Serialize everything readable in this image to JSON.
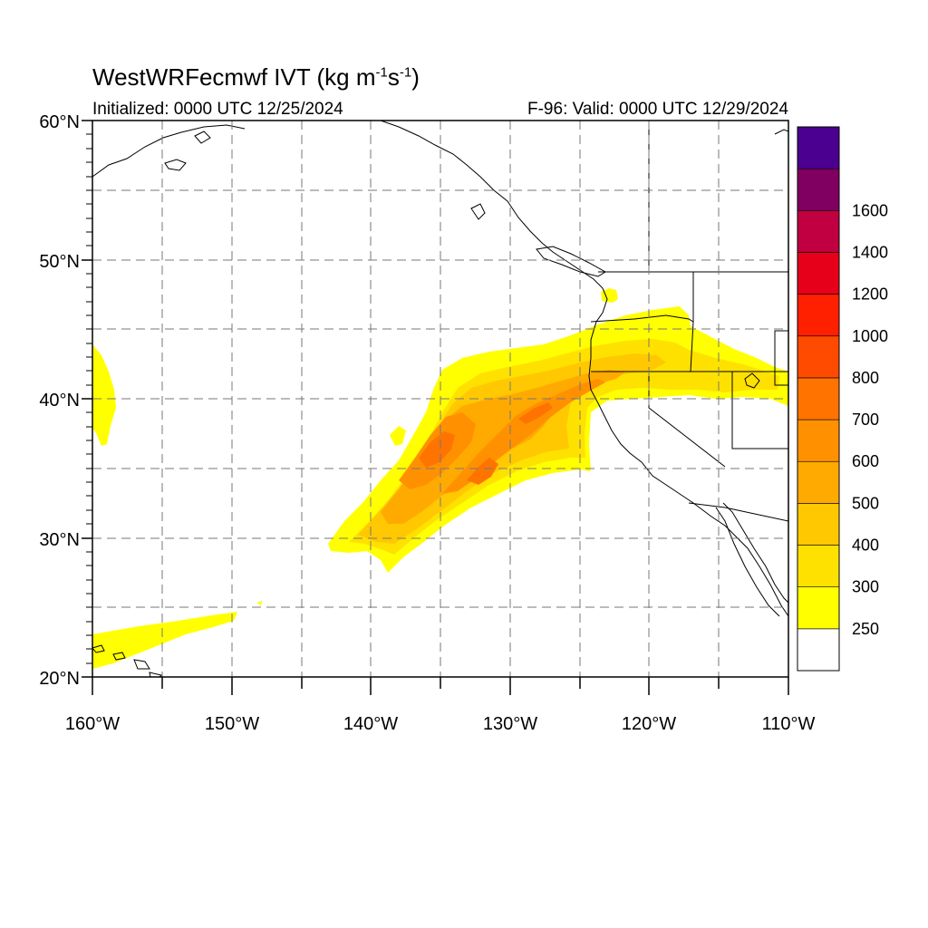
{
  "title": {
    "prefix": "WestWRFecmwf IVT (kg m",
    "sup1": "-1",
    "mid": "s",
    "sup2": "-1",
    "suffix": ")"
  },
  "subtitle_left": "Initialized: 0000 UTC 12/25/2024",
  "subtitle_right": "F-96: Valid: 0000 UTC 12/29/2024",
  "chart_data": {
    "type": "heatmap",
    "variable": "IVT",
    "units": "kg m-1 s-1",
    "lon_range": [
      -160,
      -110
    ],
    "lat_range": [
      20,
      60
    ],
    "grid": true,
    "legend_placement": "right",
    "lat_labels": [
      "60°N",
      "50°N",
      "40°N",
      "30°N",
      "20°N"
    ],
    "lon_labels": [
      "160°W",
      "150°W",
      "140°W",
      "130°W",
      "120°W",
      "110°W"
    ],
    "colorbar": {
      "levels": [
        250,
        300,
        400,
        500,
        600,
        700,
        800,
        1000,
        1200,
        1400,
        1600
      ],
      "level_labels": [
        "250",
        "300",
        "400",
        "500",
        "600",
        "700",
        "800",
        "1000",
        "1200",
        "1400",
        "1600"
      ],
      "colors": [
        "#ffffff",
        "#ffff00",
        "#ffe100",
        "#ffc800",
        "#ffaa00",
        "#ff9100",
        "#ff7300",
        "#ff4b00",
        "#ff2000",
        "#e6001a",
        "#c00040",
        "#7f0060",
        "#4b0090"
      ]
    },
    "ivt_regions": [
      {
        "name": "main atmospheric river",
        "level_min": 250,
        "level_max": 700,
        "lon_extent": [
          -143,
          -111
        ],
        "lat_extent": [
          28,
          45
        ]
      },
      {
        "name": "river core",
        "level_min": 500,
        "level_max": 700,
        "lon_extent": [
          -138,
          -126
        ],
        "lat_extent": [
          33,
          40
        ]
      },
      {
        "name": "western edge plume",
        "level_min": 250,
        "level_max": 300,
        "lon_extent": [
          -160,
          -158
        ],
        "lat_extent": [
          37,
          44
        ]
      },
      {
        "name": "subtropical band",
        "level_min": 250,
        "level_max": 300,
        "lon_extent": [
          -160,
          -150
        ],
        "lat_extent": [
          21,
          25
        ]
      },
      {
        "name": "Vancouver Island patch",
        "level_min": 250,
        "level_max": 300,
        "lon_extent": [
          -124,
          -123
        ],
        "lat_extent": [
          47,
          48
        ]
      }
    ]
  }
}
